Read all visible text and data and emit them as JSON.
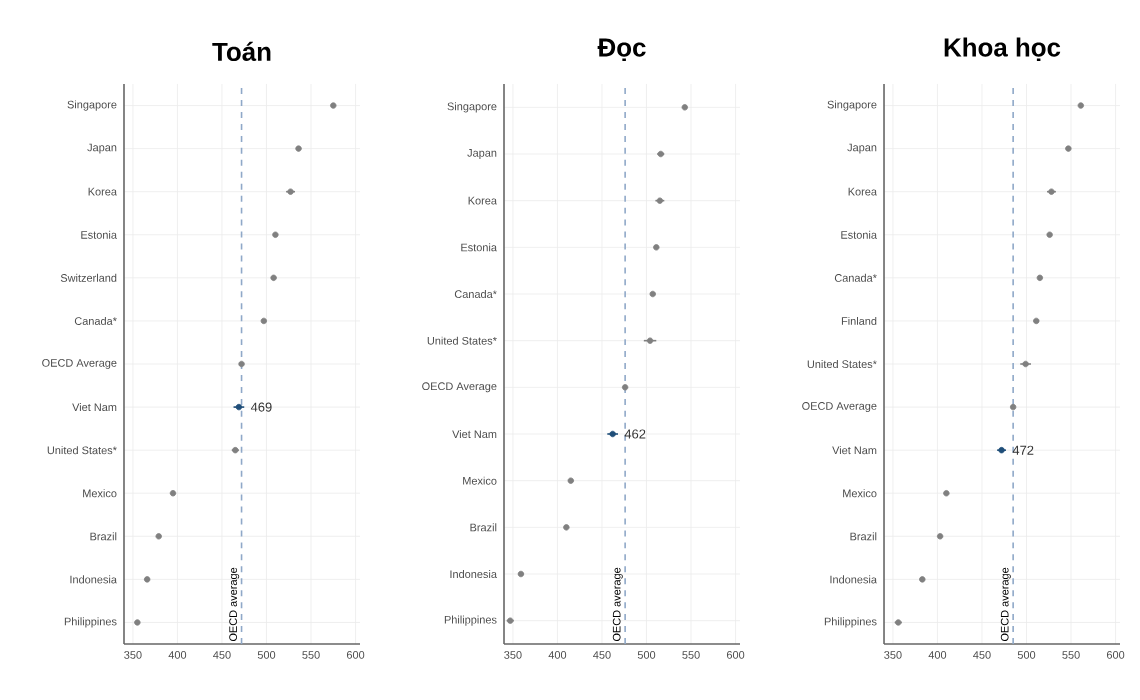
{
  "chart_data": [
    {
      "type": "scatter",
      "orientation": "horizontal",
      "title": "Toán",
      "categories": [
        "Singapore",
        "Japan",
        "Korea",
        "Estonia",
        "Switzerland",
        "Canada*",
        "OECD Average",
        "Viet Nam",
        "United States*",
        "Mexico",
        "Brazil",
        "Indonesia",
        "Philippines"
      ],
      "values": [
        575,
        536,
        527,
        510,
        508,
        497,
        472,
        469,
        465,
        395,
        379,
        366,
        355
      ],
      "errors": [
        2,
        3,
        5,
        2,
        3,
        2,
        null,
        6,
        4,
        2,
        2,
        3,
        3
      ],
      "colors": [
        "#808080",
        "#808080",
        "#808080",
        "#808080",
        "#808080",
        "#808080",
        "#808080",
        "#1f4e79",
        "#808080",
        "#808080",
        "#808080",
        "#808080",
        "#808080"
      ],
      "value_labels": [
        null,
        null,
        null,
        null,
        null,
        null,
        null,
        "469",
        null,
        null,
        null,
        null,
        null
      ],
      "xlim": [
        340,
        605
      ],
      "xticks": [
        350,
        400,
        450,
        500,
        550,
        600
      ],
      "ref_lines": [
        {
          "axis": "x",
          "value": 472,
          "label": "OECD average",
          "color": "#8fa8c8",
          "line_style": "dashed"
        }
      ],
      "grid": true
    },
    {
      "type": "scatter",
      "orientation": "horizontal",
      "title": "Đọc",
      "categories": [
        "Singapore",
        "Japan",
        "Korea",
        "Estonia",
        "Canada*",
        "United States*",
        "OECD Average",
        "Viet Nam",
        "Mexico",
        "Brazil",
        "Indonesia",
        "Philippines"
      ],
      "values": [
        543,
        516,
        515,
        511,
        507,
        504,
        476,
        462,
        415,
        410,
        359,
        347
      ],
      "errors": [
        2,
        4,
        5,
        2,
        2,
        7,
        null,
        6,
        3,
        2,
        3,
        4
      ],
      "colors": [
        "#808080",
        "#808080",
        "#808080",
        "#808080",
        "#808080",
        "#808080",
        "#808080",
        "#1f4e79",
        "#808080",
        "#808080",
        "#808080",
        "#808080"
      ],
      "value_labels": [
        null,
        null,
        null,
        null,
        null,
        null,
        null,
        "462",
        null,
        null,
        null,
        null
      ],
      "xlim": [
        340,
        605
      ],
      "xticks": [
        350,
        400,
        450,
        500,
        550,
        600
      ],
      "ref_lines": [
        {
          "axis": "x",
          "value": 476,
          "label": "OECD average",
          "color": "#8fa8c8",
          "line_style": "dashed"
        }
      ],
      "grid": true
    },
    {
      "type": "scatter",
      "orientation": "horizontal",
      "title": "Khoa học",
      "categories": [
        "Singapore",
        "Japan",
        "Korea",
        "Estonia",
        "Canada*",
        "Finland",
        "United States*",
        "OECD Average",
        "Viet Nam",
        "Mexico",
        "Brazil",
        "Indonesia",
        "Philippines"
      ],
      "values": [
        561,
        547,
        528,
        526,
        515,
        511,
        499,
        485,
        472,
        410,
        403,
        383,
        356
      ],
      "errors": [
        2,
        3,
        5,
        2,
        2,
        3,
        6,
        null,
        5,
        2,
        2,
        3,
        4
      ],
      "colors": [
        "#808080",
        "#808080",
        "#808080",
        "#808080",
        "#808080",
        "#808080",
        "#808080",
        "#808080",
        "#1f4e79",
        "#808080",
        "#808080",
        "#808080",
        "#808080"
      ],
      "value_labels": [
        null,
        null,
        null,
        null,
        null,
        null,
        null,
        null,
        "472",
        null,
        null,
        null,
        null
      ],
      "xlim": [
        340,
        605
      ],
      "xticks": [
        350,
        400,
        450,
        500,
        550,
        600
      ],
      "ref_lines": [
        {
          "axis": "x",
          "value": 485,
          "label": "OECD average",
          "color": "#8fa8c8",
          "line_style": "dashed"
        }
      ],
      "grid": true
    }
  ]
}
